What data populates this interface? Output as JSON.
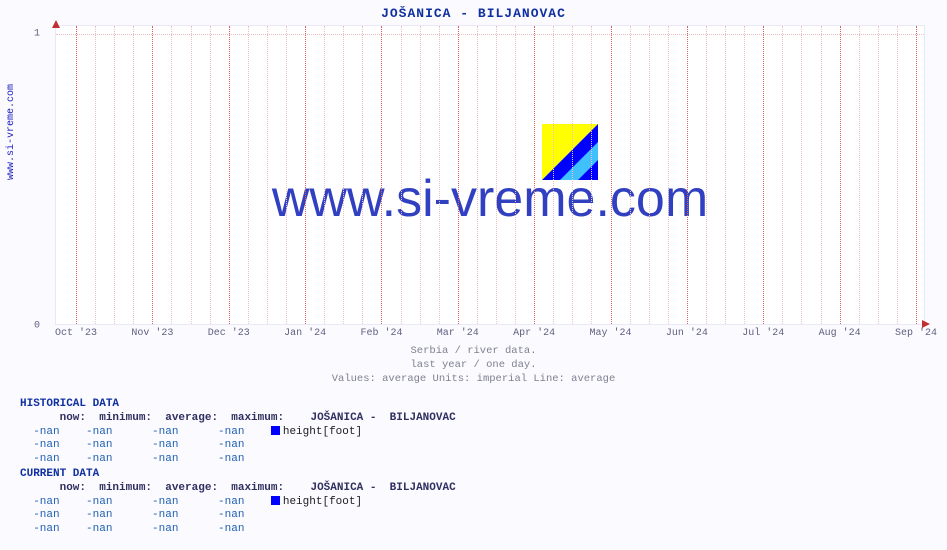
{
  "site": "www.si-vreme.com",
  "chart": {
    "title": "JOŠANICA -  BILJANOVAC",
    "type": "line",
    "background_color": "#ffffff",
    "page_background": "#fafaff",
    "grid_color_minor": "#f0c0c0",
    "grid_color_major": "#e06060",
    "axis_arrow_color": "#c03030",
    "watermark_text": "www.si-vreme.com",
    "watermark_color": "#3040c0",
    "watermark_fontsize": 52,
    "title_color": "#1030a0",
    "title_fontsize": 13,
    "ylim": [
      0,
      1
    ],
    "yticks": [
      0,
      1
    ],
    "xticks": [
      "Oct '23",
      "Nov '23",
      "Dec '23",
      "Jan '24",
      "Feb '24",
      "Mar '24",
      "Apr '24",
      "May '24",
      "Jun '24",
      "Jul '24",
      "Aug '24",
      "Sep '24"
    ],
    "xtick_color": "#606080",
    "xtick_fontsize": 10,
    "minor_vgrid_per_major": 4,
    "caption_line1": "Serbia / river data.",
    "caption_line2": "last year / one day.",
    "caption_line3": "Values: average  Units: imperial  Line: average",
    "caption_color": "#808090",
    "logo_colors": {
      "yellow": "#ffff00",
      "cyan": "#40c0ff",
      "blue": "#0000ff"
    }
  },
  "historical": {
    "heading": "HISTORICAL DATA",
    "cols": {
      "now": "now:",
      "min": "minimum:",
      "avg": "average:",
      "max": "maximum:"
    },
    "station": "JOŠANICA -  BILJANOVAC",
    "legend_color": "#0000ff",
    "legend_label": "height[foot]",
    "rows": [
      {
        "now": "-nan",
        "min": "-nan",
        "avg": "-nan",
        "max": "-nan",
        "show_legend": true
      },
      {
        "now": "-nan",
        "min": "-nan",
        "avg": "-nan",
        "max": "-nan",
        "show_legend": false
      },
      {
        "now": "-nan",
        "min": "-nan",
        "avg": "-nan",
        "max": "-nan",
        "show_legend": false
      }
    ]
  },
  "current": {
    "heading": "CURRENT DATA",
    "cols": {
      "now": "now:",
      "min": "minimum:",
      "avg": "average:",
      "max": "maximum:"
    },
    "station": "JOŠANICA -  BILJANOVAC",
    "legend_color": "#0000ff",
    "legend_label": "height[foot]",
    "rows": [
      {
        "now": "-nan",
        "min": "-nan",
        "avg": "-nan",
        "max": "-nan",
        "show_legend": true
      },
      {
        "now": "-nan",
        "min": "-nan",
        "avg": "-nan",
        "max": "-nan",
        "show_legend": false
      },
      {
        "now": "-nan",
        "min": "-nan",
        "avg": "-nan",
        "max": "-nan",
        "show_legend": false
      }
    ]
  }
}
